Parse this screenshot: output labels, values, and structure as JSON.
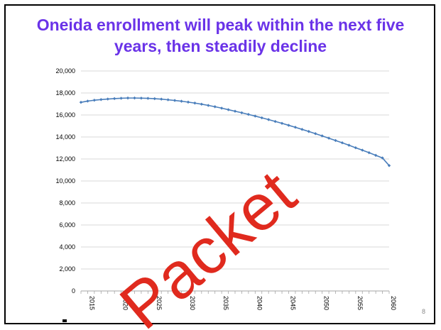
{
  "slide": {
    "title": "Oneida enrollment will peak within the next five years, then steadily decline",
    "page_number": "8",
    "watermark": "Packet",
    "title_color": "#6a33e8",
    "watermark_color": "#e02a1e"
  },
  "chart_data": {
    "type": "line",
    "title": "",
    "xlabel": "",
    "ylabel": "",
    "ylim": [
      0,
      20000
    ],
    "xlim": [
      2014,
      2060
    ],
    "grid": true,
    "legend": "none",
    "y_ticks": [
      {
        "value": 0,
        "label": "0"
      },
      {
        "value": 2000,
        "label": "2,000"
      },
      {
        "value": 4000,
        "label": "4,000"
      },
      {
        "value": 6000,
        "label": "6,000"
      },
      {
        "value": 8000,
        "label": "8,000"
      },
      {
        "value": 10000,
        "label": "10,000"
      },
      {
        "value": 12000,
        "label": "12,000"
      },
      {
        "value": 14000,
        "label": "14,000"
      },
      {
        "value": 16000,
        "label": "16,000"
      },
      {
        "value": 18000,
        "label": "18,000"
      },
      {
        "value": 20000,
        "label": "20,000"
      }
    ],
    "x_ticks": [
      {
        "value": 2015,
        "label": "2015"
      },
      {
        "value": 2020,
        "label": "2020"
      },
      {
        "value": 2025,
        "label": "2025"
      },
      {
        "value": 2030,
        "label": "2030"
      },
      {
        "value": 2035,
        "label": "2035"
      },
      {
        "value": 2040,
        "label": "2040"
      },
      {
        "value": 2045,
        "label": "2045"
      },
      {
        "value": 2050,
        "label": "2050"
      },
      {
        "value": 2055,
        "label": "2055"
      },
      {
        "value": 2060,
        "label": "2060"
      }
    ],
    "series": [
      {
        "color": "#4a7ebb",
        "x": [
          2014,
          2015,
          2016,
          2017,
          2018,
          2019,
          2020,
          2021,
          2022,
          2023,
          2024,
          2025,
          2026,
          2027,
          2028,
          2029,
          2030,
          2031,
          2032,
          2033,
          2034,
          2035,
          2036,
          2037,
          2038,
          2039,
          2040,
          2041,
          2042,
          2043,
          2044,
          2045,
          2046,
          2047,
          2048,
          2049,
          2050,
          2051,
          2052,
          2053,
          2054,
          2055,
          2056,
          2057,
          2058,
          2059,
          2060
        ],
        "y": [
          17150,
          17260,
          17340,
          17400,
          17450,
          17490,
          17520,
          17540,
          17540,
          17530,
          17510,
          17480,
          17440,
          17380,
          17320,
          17250,
          17170,
          17080,
          16980,
          16870,
          16750,
          16620,
          16480,
          16340,
          16200,
          16050,
          15900,
          15740,
          15580,
          15410,
          15240,
          15060,
          14880,
          14690,
          14500,
          14300,
          14100,
          13890,
          13680,
          13470,
          13250,
          13020,
          12800,
          12570,
          12330,
          12090,
          11400
        ]
      }
    ]
  }
}
